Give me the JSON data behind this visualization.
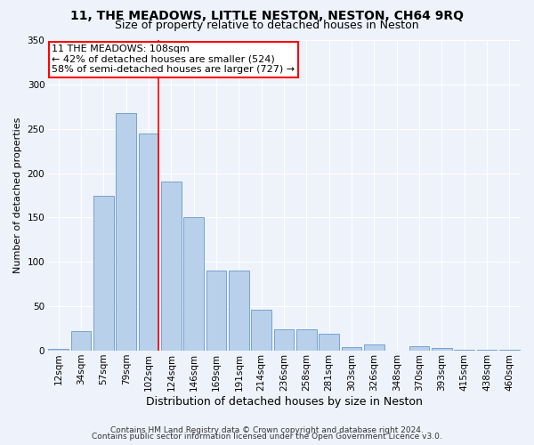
{
  "title": "11, THE MEADOWS, LITTLE NESTON, NESTON, CH64 9RQ",
  "subtitle": "Size of property relative to detached houses in Neston",
  "xlabel": "Distribution of detached houses by size in Neston",
  "ylabel": "Number of detached properties",
  "categories": [
    "12sqm",
    "34sqm",
    "57sqm",
    "79sqm",
    "102sqm",
    "124sqm",
    "146sqm",
    "169sqm",
    "191sqm",
    "214sqm",
    "236sqm",
    "258sqm",
    "281sqm",
    "303sqm",
    "326sqm",
    "348sqm",
    "370sqm",
    "393sqm",
    "415sqm",
    "438sqm",
    "460sqm"
  ],
  "values": [
    2,
    22,
    175,
    268,
    245,
    191,
    150,
    90,
    90,
    46,
    24,
    24,
    19,
    4,
    7,
    0,
    5,
    3,
    1,
    1,
    1
  ],
  "bar_color": "#b8d0ea",
  "bar_edge_color": "#6699cc",
  "vline_x_index": 4,
  "vline_color": "red",
  "annotation_text": "11 THE MEADOWS: 108sqm\n← 42% of detached houses are smaller (524)\n58% of semi-detached houses are larger (727) →",
  "annotation_box_facecolor": "white",
  "annotation_box_edgecolor": "red",
  "ylim": [
    0,
    350
  ],
  "yticks": [
    0,
    50,
    100,
    150,
    200,
    250,
    300,
    350
  ],
  "bg_color": "#eef2fb",
  "grid_color": "#ffffff",
  "footer1": "Contains HM Land Registry data © Crown copyright and database right 2024.",
  "footer2": "Contains public sector information licensed under the Open Government Licence v3.0.",
  "title_fontsize": 10,
  "subtitle_fontsize": 9,
  "xlabel_fontsize": 9,
  "ylabel_fontsize": 8,
  "tick_fontsize": 7.5,
  "annotation_fontsize": 8,
  "footer_fontsize": 6.5
}
